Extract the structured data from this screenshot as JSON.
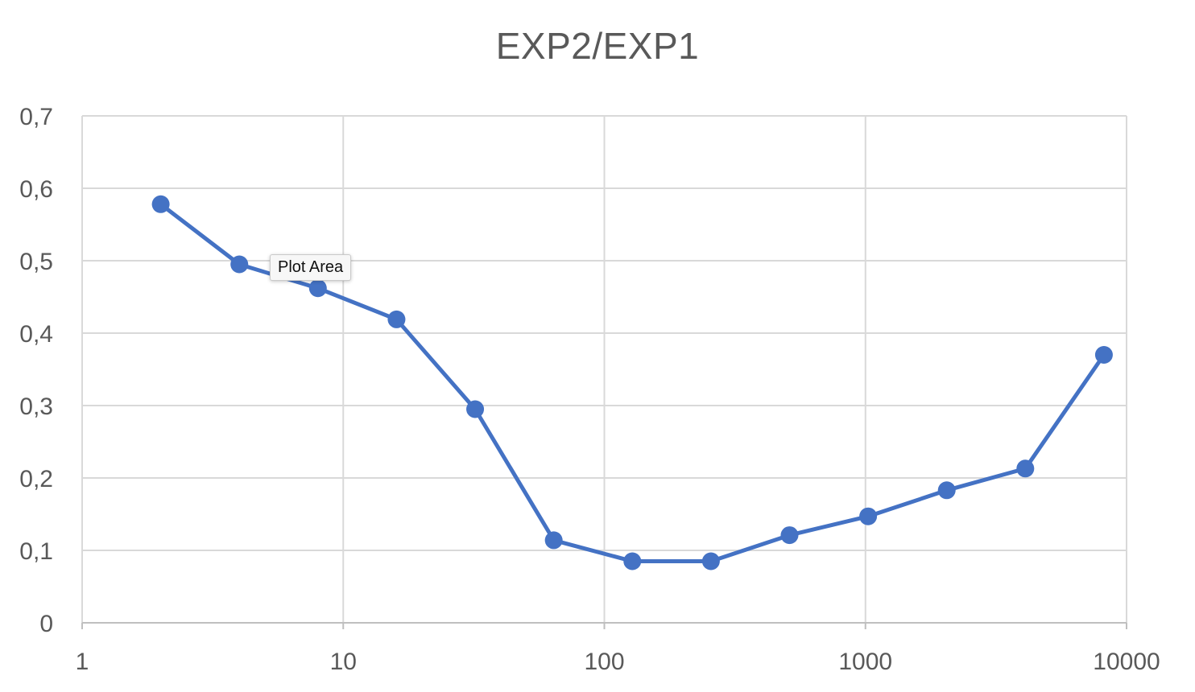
{
  "chart_data": {
    "type": "line",
    "title": "EXP2/EXP1",
    "xlabel": "",
    "ylabel": "",
    "x_scale": "log",
    "xlim": [
      1,
      10000
    ],
    "ylim": [
      0,
      0.7
    ],
    "x_ticks": [
      1,
      10,
      100,
      1000,
      10000
    ],
    "x_tick_labels": [
      "1",
      "10",
      "100",
      "1000",
      "10000"
    ],
    "y_ticks": [
      0,
      0.1,
      0.2,
      0.3,
      0.4,
      0.5,
      0.6,
      0.7
    ],
    "y_tick_labels": [
      "0",
      "0,1",
      "0,2",
      "0,3",
      "0,4",
      "0,5",
      "0,6",
      "0,7"
    ],
    "grid": true,
    "legend": "none",
    "series": [
      {
        "color": "#4472c4",
        "marker": "circle",
        "x": [
          2,
          4,
          8,
          16,
          32,
          64,
          128,
          256,
          512,
          1024,
          2048,
          4096,
          8192
        ],
        "y": [
          0.578,
          0.495,
          0.462,
          0.419,
          0.295,
          0.114,
          0.085,
          0.085,
          0.121,
          0.147,
          0.183,
          0.213,
          0.37
        ]
      }
    ]
  },
  "tooltip": {
    "text": "Plot Area"
  }
}
